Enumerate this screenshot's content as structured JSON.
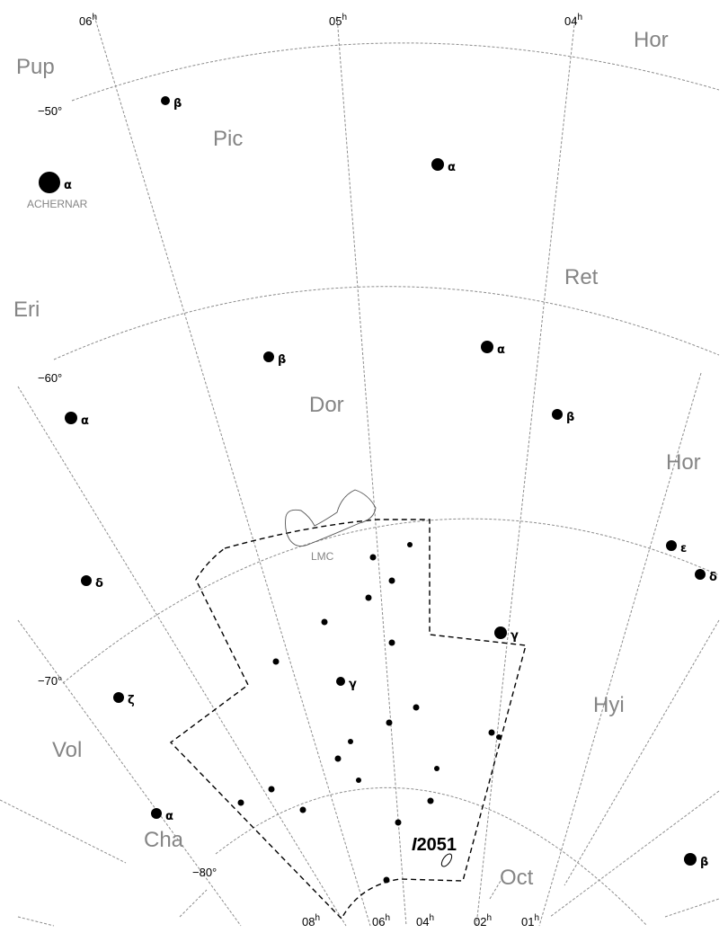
{
  "ra_labels_top": [
    "06",
    "05",
    "04"
  ],
  "ra_labels_bottom": [
    "08",
    "06",
    "04",
    "02",
    "01"
  ],
  "ra_unit": "h",
  "dec_labels": [
    "−50°",
    "−60°",
    "−70°",
    "−80°"
  ],
  "constellations": [
    "Pup",
    "Hor",
    "Pic",
    "Eri",
    "Ret",
    "Dor",
    "Hor",
    "Vol",
    "Hyi",
    "Cha",
    "Oct"
  ],
  "bright_star_name": "ACHERNAR",
  "lmc_label": "LMC",
  "object": {
    "label": "I2051",
    "prefix": "I",
    "number": "2051"
  },
  "star_greek": [
    "α",
    "β",
    "α",
    "β",
    "α",
    "β",
    "α",
    "δ",
    "ζ",
    "α",
    "ε",
    "δ",
    "γ",
    "γ",
    "β"
  ],
  "colors": {
    "grid": "#8c8c8c",
    "labels": "#858585",
    "stars": "#000000",
    "boundary": "#000000"
  }
}
